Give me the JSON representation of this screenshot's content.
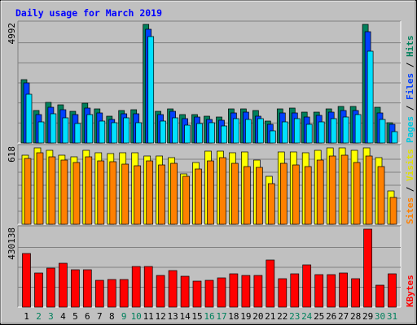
{
  "chart_data": {
    "type": "bar",
    "title": "Daily usage for March 2019",
    "categories": [
      "1",
      "2",
      "3",
      "4",
      "5",
      "6",
      "7",
      "8",
      "9",
      "10",
      "11",
      "12",
      "13",
      "14",
      "15",
      "16",
      "17",
      "18",
      "19",
      "20",
      "21",
      "22",
      "23",
      "24",
      "25",
      "26",
      "27",
      "28",
      "29",
      "30",
      "31"
    ],
    "weekend_days": [
      "2",
      "3",
      "9",
      "10",
      "16",
      "17",
      "23",
      "24",
      "30",
      "31"
    ],
    "panels": [
      {
        "id": "top",
        "ymax_label": "4992",
        "ylim": [
          0,
          4992
        ],
        "side_labels": [
          "Pages",
          "Files",
          "Hits"
        ],
        "series": [
          {
            "name": "Hits",
            "color": "#00805c",
            "values": [
              2680,
              1380,
              1700,
              1600,
              1330,
              1660,
              1430,
              1120,
              1380,
              1390,
              4992,
              1340,
              1440,
              1200,
              1200,
              1120,
              1110,
              1450,
              1440,
              1370,
              940,
              1440,
              1470,
              1310,
              1300,
              1450,
              1540,
              1550,
              4992,
              1500,
              850
            ]
          },
          {
            "name": "Files",
            "color": "#0040ff",
            "values": [
              2530,
              1190,
              1500,
              1390,
              1190,
              1460,
              1270,
              1000,
              1240,
              1240,
              4770,
              1210,
              1330,
              1020,
              1100,
              1000,
              960,
              1270,
              1300,
              1140,
              800,
              1250,
              1280,
              1110,
              1170,
              1290,
              1360,
              1370,
              4700,
              1280,
              770
            ]
          },
          {
            "name": "Pages",
            "color": "#00e0ff",
            "values": [
              2040,
              900,
              1220,
              1050,
              810,
              1190,
              940,
              860,
              1060,
              870,
              4480,
              930,
              1070,
              740,
              830,
              850,
              720,
              1010,
              980,
              1040,
              500,
              880,
              1010,
              800,
              900,
              1010,
              1080,
              1200,
              3880,
              1000,
              490
            ]
          }
        ]
      },
      {
        "id": "middle",
        "ymax_label": "618",
        "ylim": [
          0,
          618
        ],
        "side_labels": [
          "Sites",
          "Visits"
        ],
        "series": [
          {
            "name": "Visits",
            "color": "#ffff00",
            "values": [
              560,
              618,
              600,
              560,
              548,
              600,
              576,
              572,
              580,
              580,
              550,
              550,
              540,
              410,
              500,
              592,
              592,
              580,
              586,
              520,
              390,
              586,
              586,
              580,
              600,
              618,
              618,
              600,
              618,
              540,
              270
            ]
          },
          {
            "name": "Sites",
            "color": "#ff8000",
            "values": [
              530,
              580,
              545,
              520,
              500,
              545,
              510,
              505,
              486,
              476,
              510,
              480,
              490,
              390,
              450,
              510,
              540,
              490,
              470,
              460,
              330,
              490,
              480,
              470,
              520,
              550,
              560,
              500,
              550,
              465,
              220
            ]
          }
        ]
      },
      {
        "id": "bottom",
        "ymax_label": "430138",
        "ylim": [
          0,
          430138
        ],
        "side_labels": [
          "KBytes"
        ],
        "series": [
          {
            "name": "KBytes",
            "color": "#ff0000",
            "values": [
              295000,
              190000,
              213000,
              240000,
              205000,
              205000,
              148000,
              152000,
              152000,
              225000,
              225000,
              173000,
              200000,
              170000,
              145000,
              148000,
              162000,
              185000,
              174000,
              174000,
              260000,
              155000,
              185000,
              232000,
              178000,
              178000,
              190000,
              155000,
              430138,
              123000,
              185000
            ]
          }
        ]
      }
    ]
  }
}
